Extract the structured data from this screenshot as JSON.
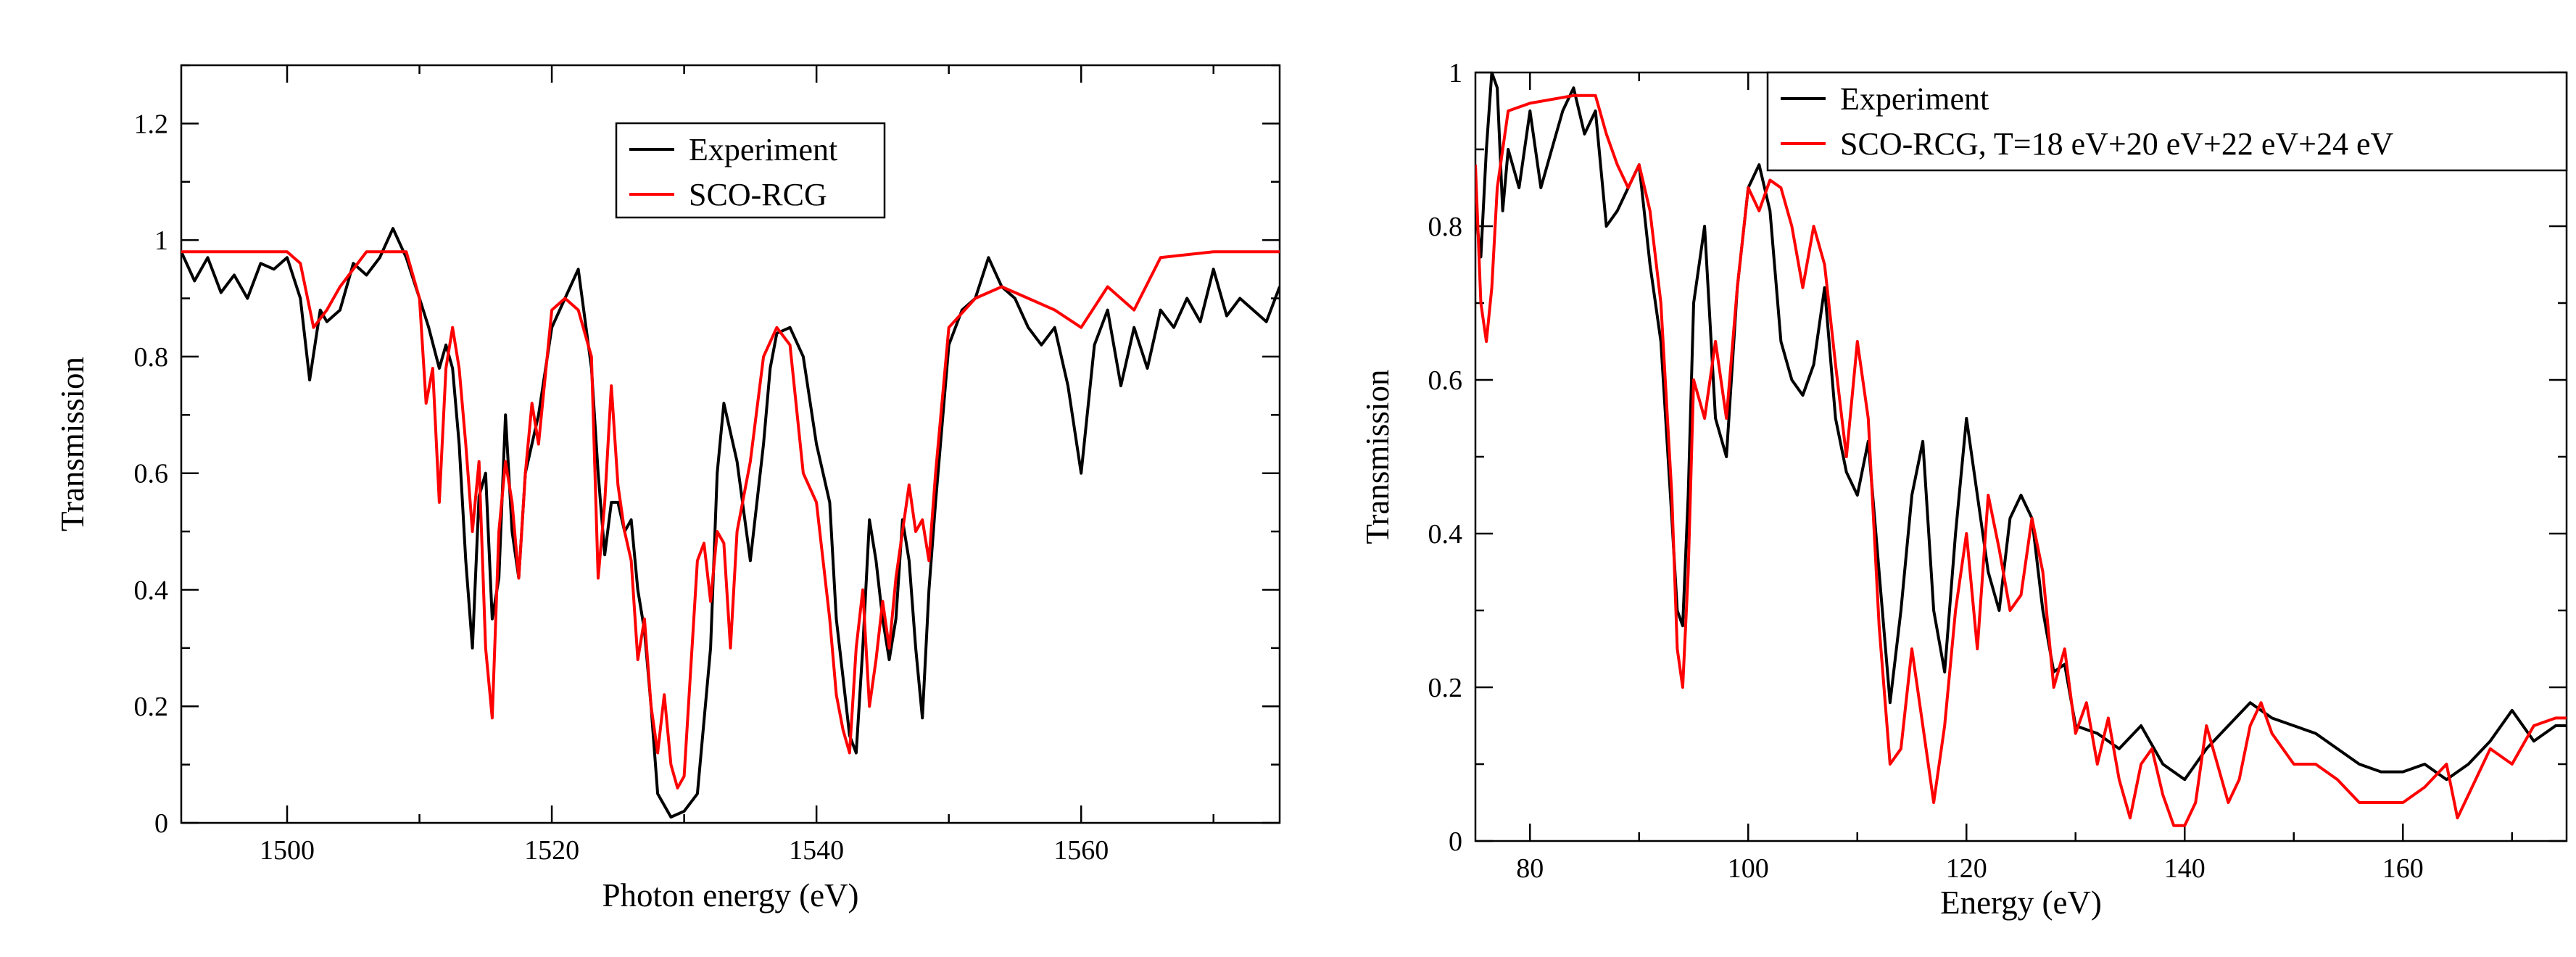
{
  "chart_data": [
    {
      "type": "line",
      "xlabel": "Photon energy (eV)",
      "ylabel": "Transmission",
      "xlim": [
        1492,
        1575
      ],
      "ylim": [
        0,
        1.3
      ],
      "xticks": [
        1500,
        1520,
        1540,
        1560
      ],
      "xtick_labels": [
        "1500",
        "1520",
        "1540",
        "1560"
      ],
      "yticks": [
        0,
        0.2,
        0.4,
        0.6,
        0.8,
        1,
        1.2
      ],
      "ytick_labels": [
        "0",
        "0.2",
        "0.4",
        "0.6",
        "0.8",
        "1",
        "1.2"
      ],
      "legend_position": "top-center",
      "series": [
        {
          "name": "Experiment",
          "color": "#000000",
          "x": [
            1492,
            1493,
            1494,
            1495,
            1496,
            1497,
            1498,
            1499,
            1500,
            1501,
            1501.7,
            1502.5,
            1503,
            1504,
            1505,
            1506,
            1507,
            1508,
            1509,
            1510,
            1510.7,
            1511.5,
            1512,
            1512.5,
            1513,
            1513.5,
            1514,
            1514.5,
            1515,
            1515.5,
            1516,
            1516.5,
            1517,
            1517.5,
            1518,
            1519,
            1520,
            1521,
            1522,
            1523,
            1523.5,
            1524,
            1524.5,
            1525,
            1525.5,
            1526,
            1526.5,
            1527,
            1527.5,
            1528,
            1529,
            1530,
            1531,
            1532,
            1532.5,
            1533,
            1534,
            1535,
            1536,
            1536.5,
            1537,
            1538,
            1539,
            1540,
            1541,
            1541.5,
            1542,
            1542.5,
            1543,
            1543.5,
            1544,
            1544.5,
            1545,
            1545.5,
            1546,
            1546.5,
            1547,
            1547.5,
            1548,
            1548.5,
            1549,
            1550,
            1551,
            1552,
            1553,
            1554,
            1555,
            1556,
            1557,
            1558,
            1559,
            1560,
            1561,
            1562,
            1563,
            1564,
            1565,
            1566,
            1567,
            1568,
            1569,
            1570,
            1571,
            1572,
            1573,
            1574,
            1575
          ],
          "values": [
            0.98,
            0.93,
            0.97,
            0.91,
            0.94,
            0.9,
            0.96,
            0.95,
            0.97,
            0.9,
            0.76,
            0.88,
            0.86,
            0.88,
            0.96,
            0.94,
            0.97,
            1.02,
            0.97,
            0.9,
            0.85,
            0.78,
            0.82,
            0.78,
            0.65,
            0.45,
            0.3,
            0.56,
            0.6,
            0.35,
            0.42,
            0.7,
            0.5,
            0.42,
            0.6,
            0.7,
            0.85,
            0.9,
            0.95,
            0.78,
            0.6,
            0.46,
            0.55,
            0.55,
            0.5,
            0.52,
            0.4,
            0.33,
            0.2,
            0.05,
            0.01,
            0.02,
            0.05,
            0.3,
            0.6,
            0.72,
            0.62,
            0.45,
            0.65,
            0.78,
            0.84,
            0.85,
            0.8,
            0.65,
            0.55,
            0.35,
            0.25,
            0.15,
            0.12,
            0.3,
            0.52,
            0.45,
            0.35,
            0.28,
            0.35,
            0.52,
            0.45,
            0.3,
            0.18,
            0.4,
            0.55,
            0.82,
            0.88,
            0.9,
            0.97,
            0.92,
            0.9,
            0.85,
            0.82,
            0.85,
            0.75,
            0.6,
            0.82,
            0.88,
            0.75,
            0.85,
            0.78,
            0.88,
            0.85,
            0.9,
            0.86,
            0.95,
            0.87,
            0.9,
            0.88,
            0.86,
            0.92
          ]
        },
        {
          "name": "SCO-RCG",
          "color": "#ff0000",
          "x": [
            1492,
            1496,
            1500,
            1501,
            1502,
            1503,
            1504,
            1506,
            1509,
            1510,
            1510.5,
            1511,
            1511.5,
            1512,
            1512.5,
            1513,
            1513.5,
            1514,
            1514.5,
            1515,
            1515.5,
            1516,
            1516.5,
            1517,
            1517.5,
            1518,
            1518.5,
            1519,
            1520,
            1521,
            1522,
            1523,
            1523.5,
            1524,
            1524.5,
            1525,
            1525.5,
            1526,
            1526.5,
            1527,
            1527.5,
            1528,
            1528.5,
            1529,
            1529.5,
            1530,
            1531,
            1531.5,
            1532,
            1532.5,
            1533,
            1533.5,
            1534,
            1535,
            1536,
            1537,
            1538,
            1539,
            1540,
            1541,
            1541.5,
            1542,
            1542.5,
            1543,
            1543.5,
            1544,
            1544.5,
            1545,
            1545.5,
            1546,
            1547,
            1547.5,
            1548,
            1548.5,
            1549,
            1550,
            1552,
            1554,
            1556,
            1558,
            1560,
            1562,
            1564,
            1566,
            1570,
            1575
          ],
          "values": [
            0.98,
            0.98,
            0.98,
            0.96,
            0.85,
            0.88,
            0.92,
            0.98,
            0.98,
            0.9,
            0.72,
            0.78,
            0.55,
            0.78,
            0.85,
            0.78,
            0.65,
            0.5,
            0.62,
            0.3,
            0.18,
            0.5,
            0.62,
            0.55,
            0.42,
            0.6,
            0.72,
            0.65,
            0.88,
            0.9,
            0.88,
            0.8,
            0.42,
            0.55,
            0.75,
            0.58,
            0.5,
            0.45,
            0.28,
            0.35,
            0.2,
            0.12,
            0.22,
            0.1,
            0.06,
            0.08,
            0.45,
            0.48,
            0.38,
            0.5,
            0.48,
            0.3,
            0.5,
            0.62,
            0.8,
            0.85,
            0.82,
            0.6,
            0.55,
            0.35,
            0.22,
            0.16,
            0.12,
            0.3,
            0.4,
            0.2,
            0.28,
            0.38,
            0.3,
            0.42,
            0.58,
            0.5,
            0.52,
            0.45,
            0.6,
            0.85,
            0.9,
            0.92,
            0.9,
            0.88,
            0.85,
            0.92,
            0.88,
            0.97,
            0.98,
            0.98
          ]
        }
      ]
    },
    {
      "type": "line",
      "xlabel": "Energy (eV)",
      "ylabel": "Transmission",
      "xlim": [
        75,
        175
      ],
      "ylim": [
        0,
        1
      ],
      "xticks": [
        80,
        100,
        120,
        140,
        160
      ],
      "xtick_labels": [
        "80",
        "100",
        "120",
        "140",
        "160"
      ],
      "yticks": [
        0,
        0.2,
        0.4,
        0.6,
        0.8,
        1
      ],
      "ytick_labels": [
        "0",
        "0.2",
        "0.4",
        "0.6",
        "0.8",
        "1"
      ],
      "legend_position": "top-right",
      "series": [
        {
          "name": "Experiment",
          "color": "#000000",
          "x": [
            75,
            75.5,
            76,
            76.5,
            77,
            77.5,
            78,
            79,
            80,
            81,
            82,
            83,
            84,
            85,
            86,
            87,
            88,
            89,
            90,
            91,
            92,
            93,
            93.5,
            94,
            94.5,
            95,
            96,
            97,
            98,
            99,
            100,
            101,
            102,
            103,
            104,
            105,
            106,
            107,
            108,
            109,
            110,
            111,
            112,
            113,
            114,
            115,
            116,
            117,
            118,
            119,
            120,
            121,
            122,
            123,
            124,
            125,
            126,
            127,
            128,
            129,
            130,
            132,
            134,
            136,
            138,
            140,
            142,
            144,
            146,
            148,
            150,
            152,
            154,
            156,
            158,
            160,
            162,
            164,
            166,
            168,
            170,
            172,
            174,
            175
          ],
          "values": [
            0.82,
            0.76,
            0.9,
            1.0,
            0.98,
            0.82,
            0.9,
            0.85,
            0.95,
            0.85,
            0.9,
            0.95,
            0.98,
            0.92,
            0.95,
            0.8,
            0.82,
            0.85,
            0.88,
            0.75,
            0.65,
            0.42,
            0.3,
            0.28,
            0.45,
            0.7,
            0.8,
            0.55,
            0.5,
            0.72,
            0.85,
            0.88,
            0.82,
            0.65,
            0.6,
            0.58,
            0.62,
            0.72,
            0.55,
            0.48,
            0.45,
            0.52,
            0.35,
            0.18,
            0.3,
            0.45,
            0.52,
            0.3,
            0.22,
            0.4,
            0.55,
            0.45,
            0.35,
            0.3,
            0.42,
            0.45,
            0.42,
            0.3,
            0.22,
            0.23,
            0.15,
            0.14,
            0.12,
            0.15,
            0.1,
            0.08,
            0.12,
            0.15,
            0.18,
            0.16,
            0.15,
            0.14,
            0.12,
            0.1,
            0.09,
            0.09,
            0.1,
            0.08,
            0.1,
            0.13,
            0.17,
            0.13,
            0.15,
            0.15
          ]
        },
        {
          "name": "SCO-RCG, T=18 eV+20 eV+22 eV+24 eV",
          "color": "#ff0000",
          "x": [
            75,
            75.5,
            76,
            76.5,
            77,
            78,
            80,
            84,
            86,
            87,
            88,
            89,
            90,
            91,
            92,
            93,
            93.5,
            94,
            94.5,
            95,
            96,
            97,
            98,
            99,
            100,
            101,
            102,
            103,
            104,
            105,
            106,
            107,
            108,
            109,
            110,
            111,
            112,
            113,
            114,
            115,
            116,
            117,
            118,
            119,
            120,
            121,
            122,
            123,
            124,
            125,
            126,
            127,
            128,
            129,
            130,
            131,
            132,
            133,
            134,
            135,
            136,
            137,
            138,
            139,
            140,
            141,
            142,
            143,
            144,
            145,
            146,
            147,
            148,
            150,
            152,
            154,
            156,
            158,
            160,
            162,
            164,
            165,
            166,
            168,
            170,
            172,
            174,
            175
          ],
          "values": [
            0.88,
            0.7,
            0.65,
            0.72,
            0.85,
            0.95,
            0.96,
            0.97,
            0.97,
            0.92,
            0.88,
            0.85,
            0.88,
            0.82,
            0.7,
            0.45,
            0.25,
            0.2,
            0.35,
            0.6,
            0.55,
            0.65,
            0.55,
            0.72,
            0.85,
            0.82,
            0.86,
            0.85,
            0.8,
            0.72,
            0.8,
            0.75,
            0.62,
            0.5,
            0.65,
            0.55,
            0.28,
            0.1,
            0.12,
            0.25,
            0.15,
            0.05,
            0.15,
            0.3,
            0.4,
            0.25,
            0.45,
            0.38,
            0.3,
            0.32,
            0.42,
            0.35,
            0.2,
            0.25,
            0.14,
            0.18,
            0.1,
            0.16,
            0.08,
            0.03,
            0.1,
            0.12,
            0.06,
            0.02,
            0.02,
            0.05,
            0.15,
            0.1,
            0.05,
            0.08,
            0.15,
            0.18,
            0.14,
            0.1,
            0.1,
            0.08,
            0.05,
            0.05,
            0.05,
            0.07,
            0.1,
            0.03,
            0.06,
            0.12,
            0.1,
            0.15,
            0.16,
            0.16
          ]
        }
      ]
    }
  ]
}
